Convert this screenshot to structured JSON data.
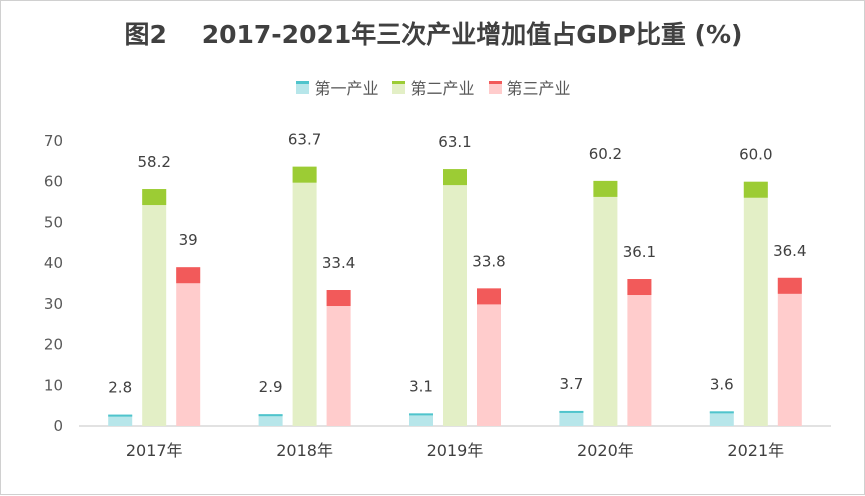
{
  "chart_data": {
    "type": "bar",
    "title": "图2    2017-2021年三次产业增加值占GDP比重 (%)",
    "categories": [
      "2017年",
      "2018年",
      "2019年",
      "2020年",
      "2021年"
    ],
    "series": [
      {
        "name": "第一产业",
        "values": [
          2.8,
          2.9,
          3.1,
          3.7,
          3.6
        ],
        "labels": [
          "2.8",
          "2.9",
          "3.1",
          "3.7",
          "3.6"
        ],
        "color": "#b7e6ea",
        "cap_color": "#4fc4cc"
      },
      {
        "name": "第二产业",
        "values": [
          58.2,
          63.7,
          63.1,
          60.2,
          60.0
        ],
        "labels": [
          "58.2",
          "63.7",
          "63.1",
          "60.2",
          "60.0"
        ],
        "color": "#e3efc6",
        "cap_color": "#9ccc34"
      },
      {
        "name": "第三产业",
        "values": [
          39,
          33.4,
          33.8,
          36.1,
          36.4
        ],
        "labels": [
          "39",
          "33.4",
          "33.8",
          "36.1",
          "36.4"
        ],
        "color": "#ffcccc",
        "cap_color": "#f25a5a"
      }
    ],
    "yticks": [
      "0",
      "10",
      "20",
      "30",
      "40",
      "50",
      "60",
      "70"
    ],
    "ylim": [
      0,
      70
    ],
    "xlabel": "",
    "ylabel": "",
    "grid": false,
    "legend": "top-center"
  }
}
